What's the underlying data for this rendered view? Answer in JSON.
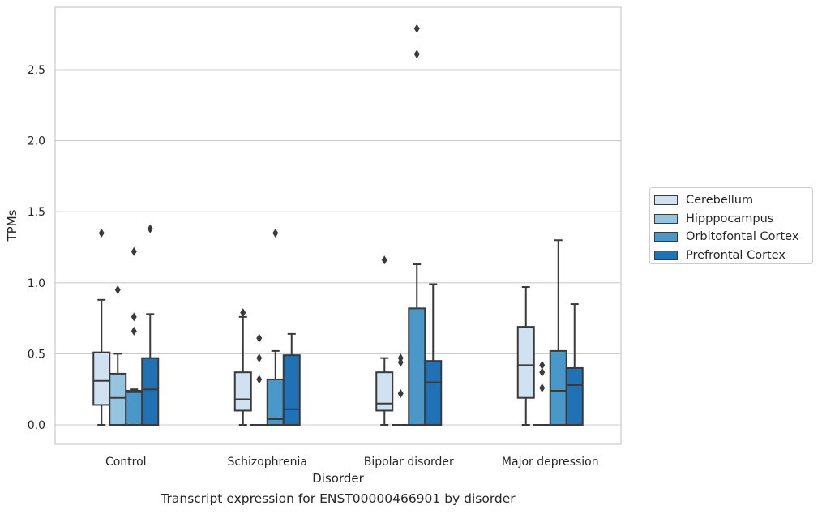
{
  "caption": "Transcript expression for ENST00000466901 by disorder",
  "chart_data": {
    "type": "boxplot",
    "xlabel": "Disorder",
    "ylabel": "TPMs",
    "ylim": [
      -0.13,
      2.96
    ],
    "yticks": [
      0.0,
      0.5,
      1.0,
      1.5,
      2.0,
      2.5
    ],
    "ytick_labels": [
      "0.0",
      "0.5",
      "1.0",
      "1.5",
      "2.0",
      "2.5"
    ],
    "grid": "horizontal",
    "legend_position": "right",
    "categories": [
      "Control",
      "Schizophrenia",
      "Bipolar disorder",
      "Major depression"
    ],
    "series": [
      {
        "name": "Cerebellum",
        "color": "#d0e1f2",
        "boxes": [
          {
            "whislo": 0.0,
            "q1": 0.14,
            "med": 0.31,
            "q3": 0.51,
            "whishi": 0.88,
            "fliers": [
              1.35
            ]
          },
          {
            "whislo": 0.0,
            "q1": 0.1,
            "med": 0.18,
            "q3": 0.37,
            "whishi": 0.76,
            "fliers": [
              0.79
            ]
          },
          {
            "whislo": 0.0,
            "q1": 0.1,
            "med": 0.15,
            "q3": 0.37,
            "whishi": 0.47,
            "fliers": [
              1.16
            ]
          },
          {
            "whislo": 0.0,
            "q1": 0.19,
            "med": 0.42,
            "q3": 0.69,
            "whishi": 0.97,
            "fliers": []
          }
        ]
      },
      {
        "name": "Hipppocampus",
        "color": "#94c4df",
        "boxes": [
          {
            "whislo": 0.0,
            "q1": 0.0,
            "med": 0.19,
            "q3": 0.36,
            "whishi": 0.5,
            "fliers": [
              0.95
            ]
          },
          {
            "whislo": 0.0,
            "q1": 0.0,
            "med": 0.0,
            "q3": 0.0,
            "whishi": 0.0,
            "fliers": [
              0.32,
              0.47,
              0.61
            ]
          },
          {
            "whislo": 0.0,
            "q1": 0.0,
            "med": 0.0,
            "q3": 0.0,
            "whishi": 0.0,
            "fliers": [
              0.22,
              0.44,
              0.47
            ]
          },
          {
            "whislo": 0.0,
            "q1": 0.0,
            "med": 0.0,
            "q3": 0.0,
            "whishi": 0.0,
            "fliers": [
              0.26,
              0.37,
              0.42
            ]
          }
        ]
      },
      {
        "name": "Orbitofontal Cortex",
        "color": "#4a98c9",
        "boxes": [
          {
            "whislo": 0.0,
            "q1": 0.0,
            "med": 0.23,
            "q3": 0.24,
            "whishi": 0.25,
            "fliers": [
              0.66,
              0.76,
              1.22
            ]
          },
          {
            "whislo": 0.0,
            "q1": 0.0,
            "med": 0.04,
            "q3": 0.32,
            "whishi": 0.52,
            "fliers": [
              1.35
            ]
          },
          {
            "whislo": 0.0,
            "q1": 0.0,
            "med": 0.0,
            "q3": 0.82,
            "whishi": 1.13,
            "fliers": [
              2.61,
              2.79
            ]
          },
          {
            "whislo": 0.0,
            "q1": 0.0,
            "med": 0.24,
            "q3": 0.52,
            "whishi": 1.3,
            "fliers": []
          }
        ]
      },
      {
        "name": "Prefrontal Cortex",
        "color": "#2171b5",
        "boxes": [
          {
            "whislo": 0.0,
            "q1": 0.0,
            "med": 0.25,
            "q3": 0.47,
            "whishi": 0.78,
            "fliers": [
              1.38
            ]
          },
          {
            "whislo": 0.0,
            "q1": 0.0,
            "med": 0.11,
            "q3": 0.49,
            "whishi": 0.64,
            "fliers": []
          },
          {
            "whislo": 0.0,
            "q1": 0.0,
            "med": 0.3,
            "q3": 0.45,
            "whishi": 0.99,
            "fliers": []
          },
          {
            "whislo": 0.0,
            "q1": 0.0,
            "med": 0.28,
            "q3": 0.4,
            "whishi": 0.85,
            "fliers": []
          }
        ]
      }
    ]
  }
}
